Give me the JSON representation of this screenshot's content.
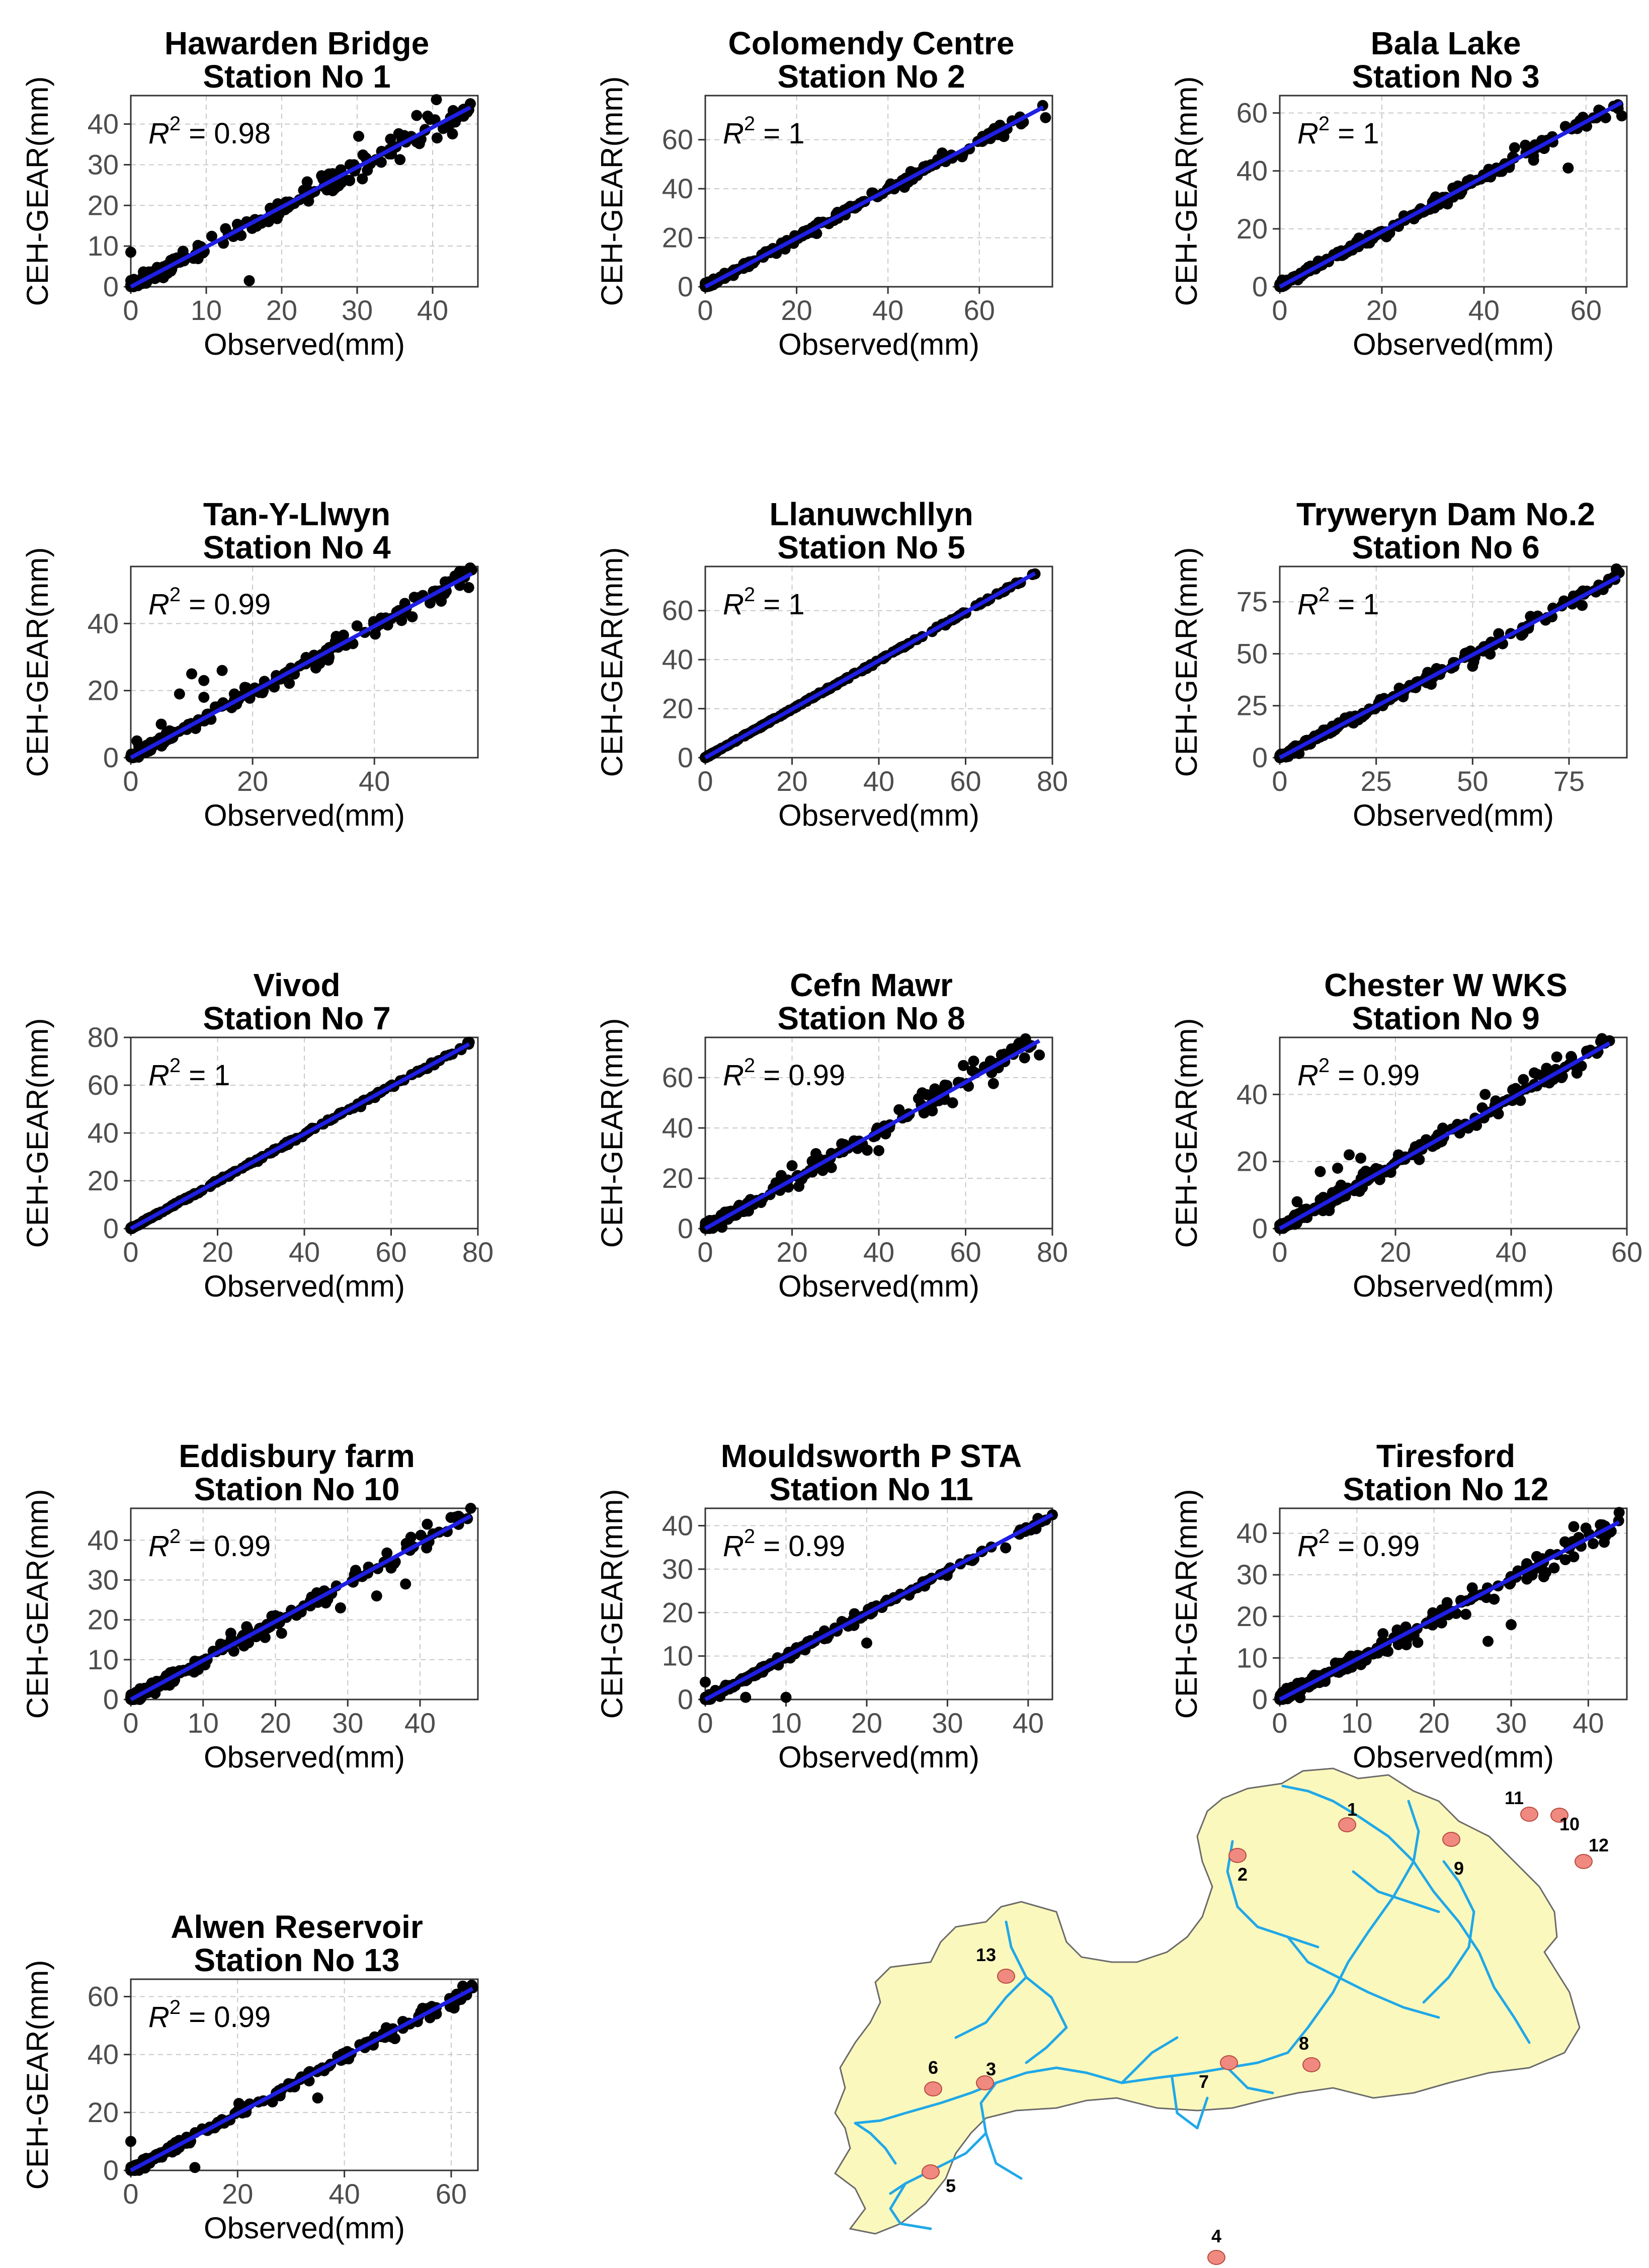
{
  "axis_label_x": "Observed(mm)",
  "axis_label_y": "CEH-GEAR(mm)",
  "r2_prefix": "R",
  "r2_exponent": "2",
  "colors": {
    "points": "#000000",
    "fit_line": "#1f1fe6",
    "grid": "#c8c8c8",
    "panel_border": "#333333",
    "map_fill": "#fbf8bd",
    "map_border": "#6b6b6b",
    "river": "#20a8e8",
    "station": "#f08a80",
    "station_border": "#b84a40"
  },
  "chart_data": [
    {
      "type": "scatter",
      "title": "Hawarden Bridge",
      "subtitle": "Station No 1",
      "r2": "0.98",
      "xlim": [
        0,
        46
      ],
      "ylim": [
        0,
        47
      ],
      "xticks": [
        0,
        10,
        20,
        30,
        40
      ],
      "yticks": [
        0,
        10,
        20,
        30,
        40
      ],
      "slope": 0.98,
      "spread": 1.2,
      "xmax": 45,
      "outliers": [
        [
          0,
          8.5
        ],
        [
          15.7,
          1.5
        ],
        [
          30.2,
          37
        ],
        [
          40.5,
          46
        ],
        [
          43,
          40.5
        ],
        [
          45,
          45
        ]
      ]
    },
    {
      "type": "scatter",
      "title": "Colomendy Centre",
      "subtitle": "Station No 2",
      "r2": "1",
      "xlim": [
        0,
        76
      ],
      "ylim": [
        0,
        78
      ],
      "xticks": [
        0,
        20,
        40,
        60
      ],
      "yticks": [
        0,
        20,
        40,
        60
      ],
      "slope": 0.99,
      "spread": 0.9,
      "xmax": 74,
      "outliers": [
        [
          45,
          47
        ],
        [
          54,
          53
        ],
        [
          62,
          62.5
        ],
        [
          74.5,
          69
        ]
      ]
    },
    {
      "type": "scatter",
      "title": "Bala Lake",
      "subtitle": "Station No 3",
      "r2": "1",
      "xlim": [
        0,
        68
      ],
      "ylim": [
        0,
        66
      ],
      "xticks": [
        0,
        20,
        40,
        60
      ],
      "yticks": [
        0,
        20,
        40,
        60
      ],
      "slope": 0.95,
      "spread": 1.0,
      "xmax": 67,
      "outliers": [
        [
          46,
          48
        ],
        [
          50,
          49
        ],
        [
          56.5,
          41
        ],
        [
          62.5,
          61
        ],
        [
          67,
          59
        ]
      ]
    },
    {
      "type": "scatter",
      "title": "Tan-Y-Llwyn",
      "subtitle": "Station No 4",
      "r2": "0.99",
      "xlim": [
        0,
        57
      ],
      "ylim": [
        0,
        57
      ],
      "xticks": [
        0,
        20,
        40
      ],
      "yticks": [
        0,
        20,
        40
      ],
      "slope": 0.98,
      "spread": 1.1,
      "xmax": 56,
      "outliers": [
        [
          10,
          25
        ],
        [
          12,
          23
        ],
        [
          15,
          26
        ],
        [
          5,
          10
        ],
        [
          8,
          19
        ],
        [
          12,
          18
        ],
        [
          17,
          19
        ],
        [
          1,
          5
        ],
        [
          45,
          46
        ],
        [
          54,
          55.5
        ],
        [
          56,
          56
        ]
      ]
    },
    {
      "type": "scatter",
      "title": "Llanuwchllyn",
      "subtitle": "Station No 5",
      "r2": "1",
      "xlim": [
        0,
        80
      ],
      "ylim": [
        0,
        78
      ],
      "xticks": [
        0,
        20,
        40,
        60,
        80
      ],
      "yticks": [
        0,
        20,
        40,
        60
      ],
      "slope": 0.99,
      "spread": 0.2,
      "xmax": 76,
      "outliers": [
        [
          72,
          71
        ],
        [
          76,
          75
        ]
      ]
    },
    {
      "type": "scatter",
      "title": "Tryweryn Dam No.2",
      "subtitle": "Station No 6",
      "r2": "1",
      "xlim": [
        0,
        90
      ],
      "ylim": [
        0,
        92
      ],
      "xticks": [
        0,
        25,
        50,
        75
      ],
      "yticks": [
        0,
        25,
        50,
        75
      ],
      "slope": 0.99,
      "spread": 1.3,
      "xmax": 88,
      "outliers": [
        [
          5,
          2
        ],
        [
          50,
          44
        ],
        [
          65,
          68
        ],
        [
          88,
          89
        ]
      ]
    },
    {
      "type": "scatter",
      "title": "Vivod",
      "subtitle": "Station No 7",
      "r2": "1",
      "xlim": [
        0,
        80
      ],
      "ylim": [
        0,
        80
      ],
      "xticks": [
        0,
        20,
        40,
        60,
        80
      ],
      "yticks": [
        0,
        20,
        40,
        60,
        80
      ],
      "slope": 0.99,
      "spread": 0.3,
      "xmax": 78,
      "outliers": [
        [
          38,
          37
        ],
        [
          53,
          51
        ],
        [
          57,
          57
        ],
        [
          78,
          78
        ]
      ]
    },
    {
      "type": "scatter",
      "title": "Cefn Mawr",
      "subtitle": "Station No 8",
      "r2": "0.99",
      "xlim": [
        0,
        80
      ],
      "ylim": [
        0,
        76
      ],
      "xticks": [
        0,
        20,
        40,
        60,
        80
      ],
      "yticks": [
        0,
        20,
        40,
        60
      ],
      "slope": 0.97,
      "spread": 2.0,
      "xmax": 77,
      "outliers": [
        [
          20,
          25
        ],
        [
          40,
          31
        ],
        [
          54,
          53
        ],
        [
          57,
          50
        ],
        [
          66,
          62
        ],
        [
          77,
          69
        ]
      ]
    },
    {
      "type": "scatter",
      "title": "Chester W WKS",
      "subtitle": "Station No 9",
      "r2": "0.99",
      "xlim": [
        0,
        60
      ],
      "ylim": [
        0,
        57
      ],
      "xticks": [
        0,
        20,
        40,
        60
      ],
      "yticks": [
        0,
        20,
        40
      ],
      "slope": 0.97,
      "spread": 1.3,
      "xmax": 57,
      "outliers": [
        [
          7,
          17
        ],
        [
          10,
          18
        ],
        [
          12,
          22
        ],
        [
          14,
          21
        ],
        [
          3,
          8
        ],
        [
          28,
          26
        ],
        [
          35.5,
          40
        ],
        [
          35,
          36
        ],
        [
          44,
          43
        ],
        [
          57,
          56
        ]
      ]
    },
    {
      "type": "scatter",
      "title": "Eddisbury farm",
      "subtitle": "Station No 10",
      "r2": "0.99",
      "xlim": [
        0,
        48
      ],
      "ylim": [
        0,
        48
      ],
      "xticks": [
        0,
        10,
        20,
        30,
        40
      ],
      "yticks": [
        0,
        10,
        20,
        30,
        40
      ],
      "slope": 0.98,
      "spread": 1.1,
      "xmax": 47,
      "outliers": [
        [
          29,
          23
        ],
        [
          34,
          26
        ],
        [
          38,
          29
        ],
        [
          36,
          33
        ],
        [
          41,
          44
        ],
        [
          47,
          48
        ]
      ]
    },
    {
      "type": "scatter",
      "title": "Mouldsworth P STA",
      "subtitle": "Station No 11",
      "r2": "0.99",
      "xlim": [
        0,
        43
      ],
      "ylim": [
        0,
        44
      ],
      "xticks": [
        0,
        10,
        20,
        30,
        40
      ],
      "yticks": [
        0,
        10,
        20,
        30,
        40
      ],
      "slope": 0.99,
      "spread": 0.5,
      "xmax": 43,
      "outliers": [
        [
          0,
          4
        ],
        [
          5,
          0.5
        ],
        [
          10,
          0.5
        ],
        [
          20,
          13
        ],
        [
          39,
          39
        ],
        [
          43,
          42.5
        ]
      ]
    },
    {
      "type": "scatter",
      "title": "Tiresford",
      "subtitle": "Station No 12",
      "r2": "0.99",
      "xlim": [
        0,
        45
      ],
      "ylim": [
        0,
        46
      ],
      "xticks": [
        0,
        10,
        20,
        30,
        40
      ],
      "yticks": [
        0,
        10,
        20,
        30,
        40
      ],
      "slope": 0.97,
      "spread": 1.2,
      "xmax": 44,
      "outliers": [
        [
          27,
          14
        ],
        [
          30,
          18
        ],
        [
          32,
          32
        ],
        [
          38,
          38
        ],
        [
          44,
          45
        ]
      ]
    },
    {
      "type": "scatter",
      "title": "Alwen Reservoir",
      "subtitle": "Station No 13",
      "r2": "0.99",
      "xlim": [
        0,
        65
      ],
      "ylim": [
        0,
        66
      ],
      "xticks": [
        0,
        20,
        40,
        60
      ],
      "yticks": [
        0,
        20,
        40,
        60
      ],
      "slope": 0.98,
      "spread": 1.0,
      "xmax": 64,
      "outliers": [
        [
          0,
          10
        ],
        [
          12,
          1
        ],
        [
          35,
          25
        ],
        [
          55,
          55
        ],
        [
          64,
          63
        ]
      ]
    }
  ],
  "map": {
    "stations": [
      "1",
      "2",
      "3",
      "4",
      "5",
      "6",
      "7",
      "8",
      "9",
      "10",
      "11",
      "12",
      "13"
    ]
  }
}
